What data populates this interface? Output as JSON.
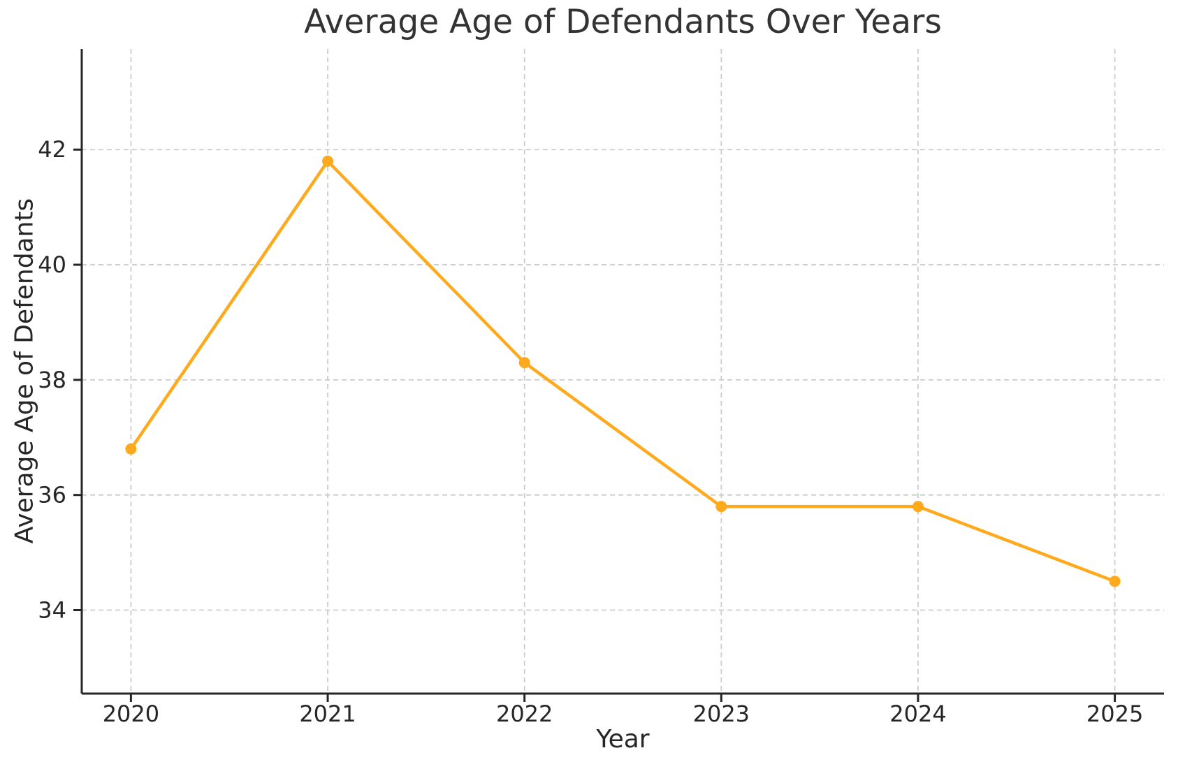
{
  "chart_data": {
    "type": "line",
    "title": "Average Age of Defendants Over Years",
    "xlabel": "Year",
    "ylabel": "Average Age of Defendants",
    "x": [
      2020,
      2021,
      2022,
      2023,
      2024,
      2025
    ],
    "series": [
      {
        "name": "Average Age of Defendants",
        "values": [
          36.8,
          41.8,
          38.3,
          35.8,
          35.8,
          34.5
        ]
      }
    ],
    "xticks": [
      2020,
      2021,
      2022,
      2023,
      2024,
      2025
    ],
    "yticks": [
      34,
      36,
      38,
      40,
      42
    ],
    "xlim": [
      2019.75,
      2025.25
    ],
    "ylim": [
      32.55,
      43.75
    ],
    "grid": "dashed",
    "legend": "none",
    "marker": "circle",
    "colors": {
      "line": "#FFA91C",
      "grid": "#CCCCCC",
      "spine": "#262626",
      "tick_text": "#262626",
      "title_text": "#333333",
      "background": "#FFFFFF"
    }
  }
}
